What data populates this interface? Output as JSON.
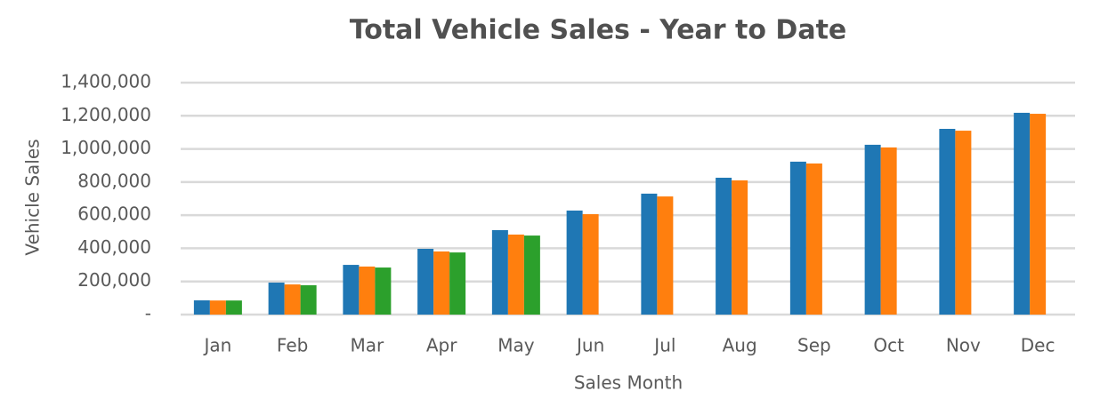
{
  "chart_data": {
    "type": "bar",
    "title": "Total Vehicle Sales - Year to Date",
    "x_label": "Sales Month",
    "y_label": "Vehicle Sales",
    "categories": [
      "Jan",
      "Feb",
      "Mar",
      "Apr",
      "May",
      "Jun",
      "Jul",
      "Aug",
      "Sep",
      "Oct",
      "Nov",
      "Dec"
    ],
    "series": [
      {
        "color": "#1f77b4",
        "values": [
          86000,
          193000,
          300000,
          397000,
          510000,
          628000,
          730000,
          826000,
          923000,
          1025000,
          1121000,
          1218000
        ]
      },
      {
        "color": "#ff7f0e",
        "values": [
          85000,
          182000,
          290000,
          381000,
          483000,
          606000,
          713000,
          810000,
          912000,
          1009000,
          1110000,
          1212000
        ]
      },
      {
        "color": "#2ca02c",
        "values": [
          85000,
          177000,
          284000,
          375000,
          477000,
          null,
          null,
          null,
          null,
          null,
          null,
          null
        ]
      }
    ],
    "ylim": [
      0,
      1400000
    ],
    "yticks": [
      {
        "value": 0,
        "label": "-"
      },
      {
        "value": 200000,
        "label": "200,000"
      },
      {
        "value": 400000,
        "label": "400,000"
      },
      {
        "value": 600000,
        "label": "600,000"
      },
      {
        "value": 800000,
        "label": "800,000"
      },
      {
        "value": 1000000,
        "label": "1,000,000"
      },
      {
        "value": 1200000,
        "label": "1,200,000"
      },
      {
        "value": 1400000,
        "label": "1,400,000"
      }
    ],
    "grid": true
  }
}
